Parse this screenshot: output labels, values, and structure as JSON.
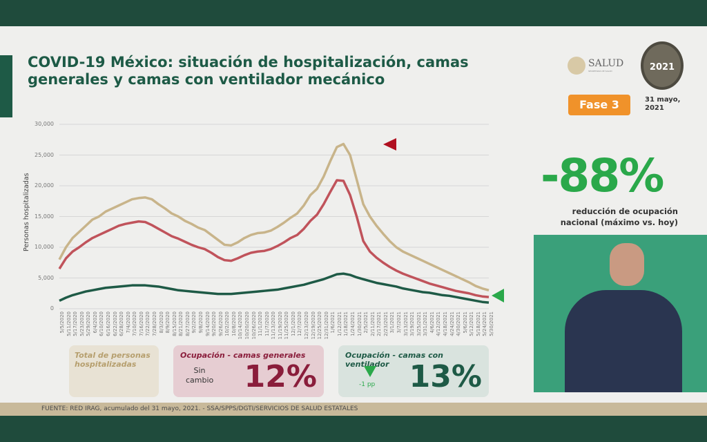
{
  "title": "COVID-19 México: situación de hospitalización, camas generales y camas con ventilador mecánico",
  "logos": {
    "salud": "SALUD",
    "salud_sub": "SECRETARÍA DE SALUD",
    "year_seal": "México 2021 Año de la Independencia"
  },
  "phase": "Fase 3",
  "date": "31 mayo, 2021",
  "reduction": {
    "value": "-88%",
    "description": "reducción de ocupación nacional (máximo vs. hoy)"
  },
  "panels": {
    "total": {
      "title": "Total de personas hospitalizadas"
    },
    "general": {
      "title": "Ocupación - camas generales",
      "change": "Sin cambio",
      "value": "12%"
    },
    "ventilator": {
      "title": "Ocupación - camas con ventilador",
      "change": "-1 pp",
      "value": "13%"
    }
  },
  "footer": "FUENTE: RED IRAG, acumulado del 31 mayo, 2021.  -  SSA/SPPS/DGTI/SERVICIOS DE SALUD ESTATALES",
  "colors": {
    "total": "#c8b48a",
    "general": "#c0535b",
    "ventilator": "#1e5a46",
    "accent_green": "#2aa84a",
    "marker_red": "#b01020"
  },
  "chart_data": {
    "type": "line",
    "ylabel": "Personas hospitalizadas",
    "ylim": [
      0,
      30000
    ],
    "yticks": [
      "0",
      "5,000",
      "10,000",
      "15,000",
      "20,000",
      "25,000",
      "30,000"
    ],
    "grid": true,
    "x": [
      "5/5/2020",
      "5/11/2020",
      "5/17/2020",
      "5/23/2020",
      "5/29/2020",
      "6/4/2020",
      "6/10/2020",
      "6/16/2020",
      "6/22/2020",
      "6/28/2020",
      "7/4/2020",
      "7/10/2020",
      "7/16/2020",
      "7/22/2020",
      "7/28/2020",
      "8/3/2020",
      "8/9/2020",
      "8/15/2020",
      "8/21/2020",
      "8/27/2020",
      "9/2/2020",
      "9/8/2020",
      "9/14/2020",
      "9/20/2020",
      "9/26/2020",
      "10/2/2020",
      "10/8/2020",
      "10/14/2020",
      "10/20/2020",
      "10/26/2020",
      "11/1/2020",
      "11/7/2020",
      "11/13/2020",
      "11/19/2020",
      "11/25/2020",
      "12/1/2020",
      "12/7/2020",
      "12/13/2020",
      "12/19/2020",
      "12/25/2020",
      "12/31/2020",
      "1/6/2021",
      "1/12/2021",
      "1/18/2021",
      "1/24/2021",
      "1/30/2021",
      "2/5/2021",
      "2/11/2021",
      "2/17/2021",
      "2/23/2021",
      "3/1/2021",
      "3/7/2021",
      "3/13/2021",
      "3/19/2021",
      "3/25/2021",
      "3/31/2021",
      "4/6/2021",
      "4/12/2021",
      "4/18/2021",
      "4/24/2021",
      "4/30/2021",
      "5/6/2021",
      "5/12/2021",
      "5/18/2021",
      "5/24/2021",
      "5/30/2021"
    ],
    "series": [
      {
        "key": "total",
        "values": [
          8000,
          10000,
          11500,
          12500,
          13500,
          14500,
          15000,
          15800,
          16300,
          16800,
          17300,
          17800,
          18000,
          18100,
          17800,
          17000,
          16300,
          15500,
          15000,
          14300,
          13800,
          13200,
          12800,
          12000,
          11200,
          10400,
          10300,
          10800,
          11500,
          12000,
          12300,
          12400,
          12700,
          13300,
          14000,
          14800,
          15500,
          16800,
          18500,
          19500,
          21500,
          24000,
          26300,
          26800,
          25000,
          21000,
          17000,
          15000,
          13500,
          12200,
          11000,
          10000,
          9300,
          8800,
          8300,
          7800,
          7300,
          6800,
          6300,
          5800,
          5300,
          4800,
          4300,
          3700,
          3300,
          3000
        ]
      },
      {
        "key": "general",
        "values": [
          6500,
          8200,
          9300,
          10000,
          10800,
          11500,
          12000,
          12500,
          13000,
          13500,
          13800,
          14000,
          14200,
          14100,
          13600,
          13000,
          12400,
          11800,
          11400,
          10900,
          10400,
          10000,
          9700,
          9100,
          8400,
          7900,
          7800,
          8200,
          8700,
          9100,
          9300,
          9400,
          9700,
          10200,
          10800,
          11500,
          12000,
          13000,
          14300,
          15300,
          17000,
          19000,
          20900,
          20800,
          18500,
          15000,
          11000,
          9300,
          8300,
          7500,
          6800,
          6200,
          5700,
          5300,
          4900,
          4500,
          4100,
          3800,
          3500,
          3200,
          2900,
          2700,
          2500,
          2200,
          2000,
          1900
        ]
      },
      {
        "key": "ventilator",
        "values": [
          1300,
          1800,
          2200,
          2500,
          2800,
          3000,
          3200,
          3400,
          3500,
          3600,
          3700,
          3800,
          3800,
          3800,
          3700,
          3600,
          3400,
          3200,
          3000,
          2900,
          2800,
          2700,
          2600,
          2500,
          2400,
          2400,
          2400,
          2500,
          2600,
          2700,
          2800,
          2900,
          3000,
          3100,
          3300,
          3500,
          3700,
          3900,
          4200,
          4500,
          4800,
          5200,
          5600,
          5700,
          5500,
          5100,
          4800,
          4500,
          4200,
          4000,
          3800,
          3600,
          3300,
          3100,
          2900,
          2700,
          2600,
          2400,
          2200,
          2100,
          1900,
          1700,
          1500,
          1300,
          1100,
          1000
        ]
      }
    ]
  }
}
